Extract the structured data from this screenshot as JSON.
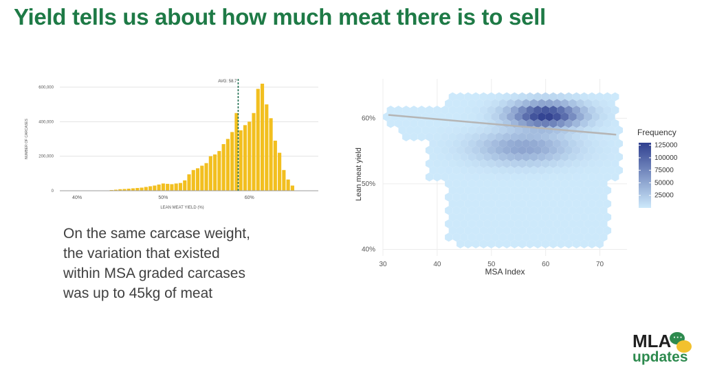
{
  "title": "Yield tells us about how much meat there is to sell",
  "caption": [
    "On the same carcase weight,",
    "the variation that existed",
    "within MSA graded carcases",
    "was up to 45kg of meat"
  ],
  "logo": {
    "line1": "MLA",
    "line2": "updates",
    "icon": "speech-bubbles-icon"
  },
  "colors": {
    "title": "#1e7a46",
    "bar": "#f2bf1f",
    "avg_line": "#1e6e50",
    "hex_low": "#cde9fb",
    "hex_high": "#2f3f8f",
    "trend": "#b5b5b5"
  },
  "chart_data": [
    {
      "type": "bar",
      "xlabel": "LEAN MEAT YIELD (%)",
      "ylabel": "NUMBER OF CARCASES",
      "xticks": [
        "40%",
        "50%",
        "60%"
      ],
      "xtick_values": [
        40,
        50,
        60
      ],
      "yticks": [
        "0",
        "200,000",
        "400,000",
        "600,000"
      ],
      "ytick_values": [
        0,
        200000,
        400000,
        600000
      ],
      "xlim": [
        38,
        68
      ],
      "ylim": [
        0,
        600000
      ],
      "annotation": {
        "label": "AVG: 58.7",
        "x": 58.7
      },
      "x": [
        44,
        44.5,
        45,
        45.5,
        46,
        46.5,
        47,
        47.5,
        48,
        48.5,
        49,
        49.5,
        50,
        50.5,
        51,
        51.5,
        52,
        52.5,
        53,
        53.5,
        54,
        54.5,
        55,
        55.5,
        56,
        56.5,
        57,
        57.5,
        58,
        58.5,
        59,
        59.5,
        60,
        60.5,
        61,
        61.5,
        62,
        62.5,
        63,
        63.5,
        64,
        64.5,
        65
      ],
      "values": [
        4000,
        6000,
        9000,
        10000,
        12000,
        14000,
        16000,
        18000,
        22000,
        26000,
        30000,
        36000,
        42000,
        40000,
        38000,
        42000,
        45000,
        60000,
        95000,
        120000,
        130000,
        145000,
        160000,
        200000,
        210000,
        230000,
        270000,
        300000,
        340000,
        450000,
        350000,
        380000,
        400000,
        450000,
        590000,
        620000,
        500000,
        420000,
        290000,
        220000,
        120000,
        65000,
        30000
      ]
    },
    {
      "type": "heatmap",
      "xlabel": "MSA Index",
      "ylabel": "Lean meat yield",
      "xticks": [
        "30",
        "40",
        "50",
        "60",
        "70"
      ],
      "xtick_values": [
        30,
        40,
        50,
        60,
        70
      ],
      "yticks": [
        "40%",
        "50%",
        "60%"
      ],
      "ytick_values": [
        40,
        50,
        60
      ],
      "xlim": [
        30,
        75
      ],
      "ylim": [
        39,
        66
      ],
      "legend": {
        "title": "Frequency",
        "ticks": [
          "125000",
          "100000",
          "75000",
          "50000",
          "25000"
        ],
        "tick_values": [
          125000,
          100000,
          75000,
          50000,
          25000
        ],
        "placement": "right"
      },
      "density_peak": {
        "x": 60,
        "y": 60.5,
        "value": 125000
      },
      "trend_line": {
        "x": [
          31,
          73
        ],
        "y": [
          60.5,
          57.5
        ]
      }
    }
  ]
}
